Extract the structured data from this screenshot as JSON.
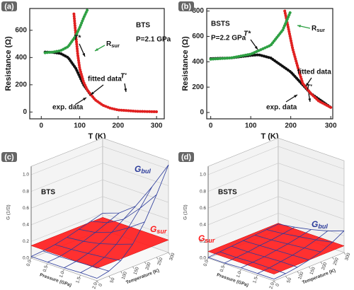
{
  "chart_data": [
    {
      "type": "line",
      "panel": "(a)",
      "xlabel": "T (K)",
      "ylabel": "Resistance (Ω)",
      "xlim": [
        -30,
        320
      ],
      "ylim": [
        -50,
        760
      ],
      "xticks": [
        0,
        100,
        200,
        300
      ],
      "yticks": [
        0,
        200,
        400,
        600
      ],
      "annotations": [
        {
          "text": "BTS"
        },
        {
          "text": "P=2.1 GPa"
        },
        {
          "text": "T*"
        },
        {
          "text": "R",
          "sub": "sur"
        },
        {
          "text": "fitted data"
        },
        {
          "text": "exp. data"
        },
        {
          "text": "T'"
        }
      ],
      "series": [
        {
          "color": "#111111",
          "x": [
            10,
            30,
            50,
            70,
            90,
            110,
            130
          ],
          "values": [
            440,
            438,
            430,
            400,
            320,
            200,
            120
          ]
        },
        {
          "color": "#e02020",
          "x": [
            85,
            90,
            95,
            100,
            110,
            120,
            140,
            160,
            180,
            200,
            250,
            300
          ],
          "values": [
            720,
            560,
            420,
            320,
            220,
            160,
            90,
            50,
            28,
            15,
            5,
            2
          ]
        },
        {
          "color": "#2ea043",
          "x": [
            10,
            30,
            50,
            70,
            90,
            100,
            110,
            120
          ],
          "values": [
            435,
            440,
            450,
            480,
            560,
            620,
            690,
            750
          ]
        }
      ]
    },
    {
      "type": "line",
      "panel": "(b)",
      "xlabel": "T (K)",
      "ylabel": "Resistance (Ω)",
      "xlim": [
        -10,
        305
      ],
      "ylim": [
        -50,
        820
      ],
      "xticks": [
        0,
        100,
        200,
        300
      ],
      "yticks": [
        0,
        200,
        400,
        600,
        800
      ],
      "annotations": [
        {
          "text": "BSTS"
        },
        {
          "text": "P=2.2 GPa"
        },
        {
          "text": "T*"
        },
        {
          "text": "R",
          "sub": "sur"
        },
        {
          "text": "fitted data"
        },
        {
          "text": "exp. data"
        },
        {
          "text": "T'"
        }
      ],
      "series": [
        {
          "color": "#111111",
          "x": [
            0,
            50,
            100,
            120,
            150,
            200,
            250,
            300
          ],
          "values": [
            425,
            430,
            450,
            455,
            430,
            320,
            150,
            40
          ]
        },
        {
          "color": "#e02020",
          "x": [
            185,
            195,
            205,
            220,
            230,
            250,
            270,
            300
          ],
          "values": [
            800,
            650,
            500,
            330,
            230,
            150,
            90,
            40
          ]
        },
        {
          "color": "#2ea043",
          "x": [
            0,
            50,
            100,
            150,
            180,
            200
          ],
          "values": [
            420,
            430,
            460,
            530,
            650,
            800
          ]
        }
      ]
    },
    {
      "type": "surface3d",
      "panel": "(c)",
      "label": "BTS",
      "zlabel": "G (1/Ω)",
      "xlabel": "Pressure (GPa)",
      "ylabel": "Temperature (K)",
      "xlim": [
        0,
        2
      ],
      "ylim": [
        0,
        300
      ],
      "zlim": [
        0,
        1.1
      ],
      "xticks": [
        {
          "value": 0,
          "label": "0.0"
        },
        0.5,
        {
          "value": 1,
          "label": "1.0"
        },
        1.5,
        {
          "value": 2,
          "label": "2.0"
        }
      ],
      "yticks": [
        0,
        50,
        100,
        150,
        200,
        250,
        300
      ],
      "zticks": [
        {
          "value": 0,
          "label": "0.0"
        },
        0.2,
        0.4,
        0.6,
        0.8,
        {
          "value": 1,
          "label": "1.0"
        }
      ],
      "x_grid": [
        0,
        0.5,
        1,
        1.5,
        2
      ],
      "y_grid": [
        0,
        50,
        100,
        150,
        200,
        250,
        300
      ],
      "bulk": {
        "name": "G",
        "sub": "bul",
        "color": "#2a3a9a",
        "values": [
          [
            0.02,
            0.03,
            0.05,
            0.08,
            0.12,
            0.16,
            0.2
          ],
          [
            0.02,
            0.03,
            0.06,
            0.1,
            0.15,
            0.21,
            0.27
          ],
          [
            0.02,
            0.04,
            0.08,
            0.14,
            0.22,
            0.32,
            0.42
          ],
          [
            0.03,
            0.05,
            0.1,
            0.2,
            0.34,
            0.52,
            0.72
          ],
          [
            0.03,
            0.06,
            0.13,
            0.27,
            0.48,
            0.75,
            1.05
          ]
        ]
      },
      "surface": {
        "name": "G",
        "sub": "sur",
        "color": "#ff1a1a",
        "value": 0.15
      }
    },
    {
      "type": "surface3d",
      "panel": "(d)",
      "label": "BSTS",
      "zlabel": "G (1/Ω)",
      "xlabel": "Pressure (GPa)",
      "ylabel": "Temperature (K)",
      "xlim": [
        0,
        2
      ],
      "ylim": [
        0,
        300
      ],
      "zlim": [
        0,
        1.1
      ],
      "xticks": [
        {
          "value": 0,
          "label": "0.0"
        },
        0.5,
        {
          "value": 1,
          "label": "1.0"
        },
        1.5,
        {
          "value": 2,
          "label": "2.0"
        }
      ],
      "yticks": [
        0,
        50,
        100,
        150,
        200,
        250,
        300
      ],
      "zticks": [
        {
          "value": 0,
          "label": "0.0"
        },
        0.2,
        0.4,
        0.6,
        0.8,
        {
          "value": 1,
          "label": "1.0"
        }
      ],
      "x_grid": [
        0,
        0.5,
        1,
        1.5,
        2
      ],
      "y_grid": [
        0,
        50,
        100,
        150,
        200,
        250,
        300
      ],
      "bulk": {
        "name": "G",
        "sub": "bul",
        "color": "#2a3a9a",
        "values": [
          [
            0.01,
            0.02,
            0.03,
            0.04,
            0.05,
            0.06,
            0.07
          ],
          [
            0.01,
            0.02,
            0.03,
            0.05,
            0.06,
            0.08,
            0.1
          ],
          [
            0.02,
            0.03,
            0.04,
            0.06,
            0.08,
            0.11,
            0.14
          ],
          [
            0.02,
            0.03,
            0.05,
            0.07,
            0.1,
            0.14,
            0.19
          ],
          [
            0.02,
            0.03,
            0.05,
            0.08,
            0.12,
            0.18,
            0.26
          ]
        ]
      },
      "surface": {
        "name": "G",
        "sub": "sur",
        "color": "#ff1a1a",
        "value": 0.08
      }
    }
  ]
}
